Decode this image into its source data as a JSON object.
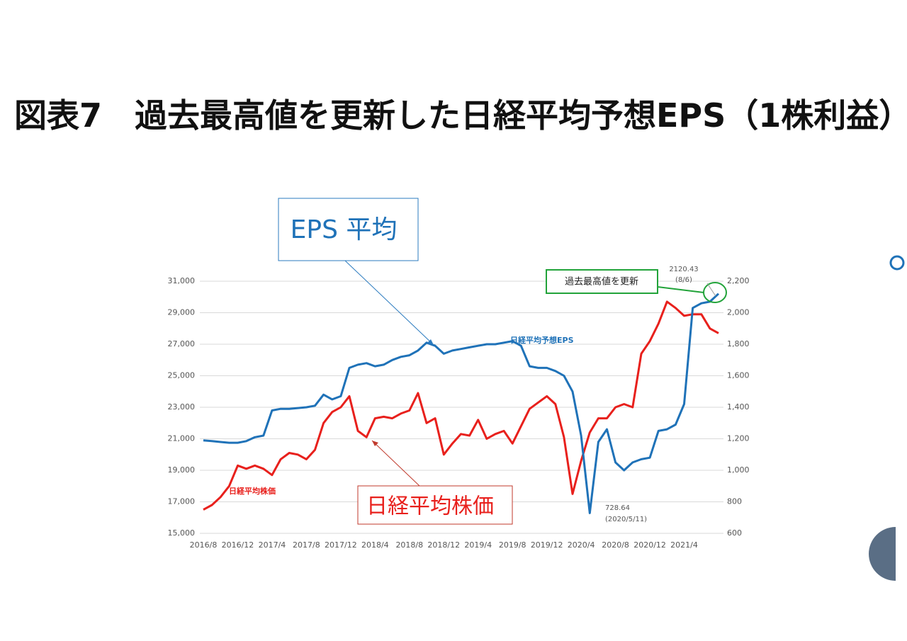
{
  "chart_data": {
    "type": "line",
    "title": "図表7　過去最高値を更新した日経平均予想EPS（1株利益）",
    "categories": [
      "2016/8",
      null,
      null,
      null,
      "2016/12",
      null,
      null,
      null,
      "2017/4",
      null,
      null,
      null,
      "2017/8",
      null,
      null,
      null,
      "2017/12",
      null,
      null,
      null,
      "2018/4",
      null,
      null,
      null,
      "2018/8",
      null,
      null,
      null,
      "2018/12",
      null,
      null,
      null,
      "2019/4",
      null,
      null,
      null,
      "2019/8",
      null,
      null,
      null,
      "2019/12",
      null,
      null,
      null,
      "2020/4",
      null,
      null,
      null,
      "2020/8",
      null,
      null,
      null,
      "2020/12",
      null,
      null,
      null,
      "2021/4",
      null,
      null,
      null,
      null
    ],
    "series": [
      {
        "name": "日経平均株価",
        "color": "#e8201c",
        "axis": "y",
        "values": [
          16500,
          16800,
          17300,
          18000,
          19300,
          19100,
          19300,
          19100,
          18700,
          19700,
          20100,
          20000,
          19700,
          20300,
          22000,
          22700,
          23000,
          23700,
          21500,
          21100,
          22300,
          22400,
          22300,
          22600,
          22800,
          23900,
          22000,
          22300,
          20000,
          20700,
          21300,
          21200,
          22200,
          21000,
          21300,
          21500,
          20700,
          21800,
          22900,
          23300,
          23700,
          23200,
          21100,
          17500,
          19600,
          21400,
          22300,
          22300,
          23000,
          23200,
          23000,
          26400,
          27200,
          28300,
          29700,
          29300,
          28800,
          28900,
          28900,
          28000,
          27700
        ]
      },
      {
        "name": "日経平均予想EPS",
        "color": "#1f72b8",
        "axis": "y2",
        "values": [
          1190,
          1185,
          1180,
          1175,
          1175,
          1185,
          1210,
          1220,
          1380,
          1390,
          1390,
          1395,
          1400,
          1410,
          1480,
          1450,
          1470,
          1650,
          1670,
          1680,
          1660,
          1670,
          1700,
          1720,
          1730,
          1760,
          1810,
          1790,
          1740,
          1760,
          1770,
          1780,
          1790,
          1800,
          1800,
          1810,
          1820,
          1790,
          1660,
          1650,
          1650,
          1630,
          1600,
          1500,
          1220,
          728.64,
          1180,
          1260,
          1050,
          1000,
          1050,
          1070,
          1080,
          1250,
          1260,
          1290,
          1420,
          2030,
          2060,
          2070,
          2120.43
        ]
      }
    ],
    "ylim": [
      15000,
      31000
    ],
    "yticks": [
      {
        "value": 15000,
        "label": "15,000"
      },
      {
        "value": 17000,
        "label": "17,000"
      },
      {
        "value": 19000,
        "label": "19,000"
      },
      {
        "value": 21000,
        "label": "21,000"
      },
      {
        "value": 23000,
        "label": "23,000"
      },
      {
        "value": 25000,
        "label": "25,000"
      },
      {
        "value": 27000,
        "label": "27,000"
      },
      {
        "value": 29000,
        "label": "29,000"
      },
      {
        "value": 31000,
        "label": "31,000"
      }
    ],
    "y2lim": [
      600,
      2200
    ],
    "y2ticks": [
      600,
      800,
      {
        "value": 1000,
        "label": "1,000"
      },
      {
        "value": 1200,
        "label": "1,200"
      },
      {
        "value": 1400,
        "label": "1,400"
      },
      {
        "value": 1600,
        "label": "1,600"
      },
      {
        "value": 1800,
        "label": "1,800"
      },
      {
        "value": 2000,
        "label": "2,000"
      },
      {
        "value": 2200,
        "label": "2,200"
      }
    ],
    "grid": true,
    "annotations": [
      "EPS 平均",
      "日経平均株価",
      "過去最高値を更新",
      "(8/6)",
      "(2020/5/11)"
    ]
  }
}
